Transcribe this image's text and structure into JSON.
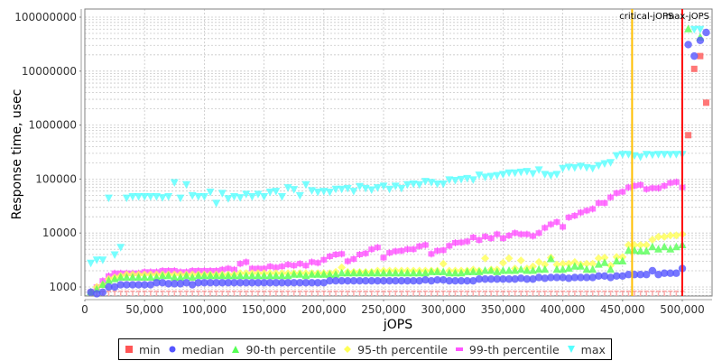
{
  "chart_data": {
    "type": "scatter",
    "title": "",
    "xlabel": "jOPS",
    "ylabel": "Response time, usec",
    "yscale": "log",
    "xlim": [
      0,
      525000
    ],
    "ylim": [
      700,
      130000000
    ],
    "x_ticks": [
      0,
      50000,
      100000,
      150000,
      200000,
      250000,
      300000,
      350000,
      400000,
      450000,
      500000
    ],
    "x_tick_labels": [
      "0",
      "50,000",
      "100,000",
      "150,000",
      "200,000",
      "250,000",
      "300,000",
      "350,000",
      "400,000",
      "450,000",
      "500,000"
    ],
    "y_ticks": [
      1000,
      10000,
      100000,
      1000000,
      10000000,
      100000000
    ],
    "y_tick_labels": [
      "1000",
      "10000",
      "100000",
      "1000000",
      "10000000",
      "100000000"
    ],
    "grid": true,
    "legend_position": "bottom",
    "annotations": [
      {
        "label": "critical-jOPS",
        "x": 458000,
        "color": "#ffc000"
      },
      {
        "label": "max-jOPS",
        "x": 500000,
        "color": "#ff0000"
      }
    ],
    "x": [
      5000,
      10000,
      15000,
      20000,
      25000,
      30000,
      35000,
      40000,
      45000,
      50000,
      55000,
      60000,
      65000,
      70000,
      75000,
      80000,
      85000,
      90000,
      95000,
      100000,
      105000,
      110000,
      115000,
      120000,
      125000,
      130000,
      135000,
      140000,
      145000,
      150000,
      155000,
      160000,
      165000,
      170000,
      175000,
      180000,
      185000,
      190000,
      195000,
      200000,
      205000,
      210000,
      215000,
      220000,
      225000,
      230000,
      235000,
      240000,
      245000,
      250000,
      255000,
      260000,
      265000,
      270000,
      275000,
      280000,
      285000,
      290000,
      295000,
      300000,
      305000,
      310000,
      315000,
      320000,
      325000,
      330000,
      335000,
      340000,
      345000,
      350000,
      355000,
      360000,
      365000,
      370000,
      375000,
      380000,
      385000,
      390000,
      395000,
      400000,
      405000,
      410000,
      415000,
      420000,
      425000,
      430000,
      435000,
      440000,
      445000,
      450000,
      455000,
      460000,
      465000,
      470000,
      475000,
      480000,
      485000,
      490000,
      495000,
      500000
    ],
    "series": [
      {
        "name": "min",
        "color": "#ff5555",
        "marker": "square",
        "values": [
          800,
          800,
          800,
          800,
          800,
          800,
          800,
          800,
          800,
          800,
          800,
          800,
          800,
          800,
          800,
          800,
          800,
          800,
          800,
          800,
          800,
          800,
          800,
          800,
          800,
          800,
          800,
          800,
          800,
          800,
          800,
          800,
          800,
          800,
          800,
          800,
          800,
          800,
          800,
          800,
          800,
          800,
          800,
          800,
          800,
          800,
          800,
          800,
          800,
          800,
          800,
          800,
          800,
          800,
          800,
          800,
          800,
          800,
          800,
          800,
          800,
          800,
          800,
          800,
          800,
          800,
          800,
          800,
          800,
          800,
          800,
          800,
          800,
          800,
          800,
          800,
          800,
          800,
          800,
          800,
          800,
          800,
          800,
          800,
          800,
          800,
          800,
          800,
          800,
          800,
          800,
          800,
          800,
          800,
          800,
          800,
          800,
          800,
          800,
          800
        ],
        "extra_points": [
          {
            "x": 505000,
            "y": 650000
          },
          {
            "x": 510000,
            "y": 11000000
          },
          {
            "x": 515000,
            "y": 19000000
          },
          {
            "x": 520000,
            "y": 2600000
          }
        ]
      },
      {
        "name": "median",
        "color": "#5555ff",
        "marker": "circle",
        "values": [
          800,
          750,
          800,
          1000,
          1000,
          1100,
          1100,
          1100,
          1100,
          1100,
          1100,
          1200,
          1200,
          1150,
          1150,
          1150,
          1200,
          1100,
          1200,
          1200,
          1200,
          1200,
          1200,
          1200,
          1200,
          1200,
          1200,
          1200,
          1200,
          1200,
          1200,
          1200,
          1200,
          1200,
          1200,
          1200,
          1200,
          1200,
          1200,
          1200,
          1300,
          1300,
          1300,
          1300,
          1300,
          1300,
          1300,
          1300,
          1300,
          1300,
          1300,
          1300,
          1300,
          1300,
          1300,
          1300,
          1350,
          1300,
          1350,
          1350,
          1300,
          1300,
          1300,
          1300,
          1300,
          1400,
          1400,
          1400,
          1400,
          1400,
          1400,
          1400,
          1450,
          1400,
          1400,
          1500,
          1450,
          1500,
          1500,
          1500,
          1450,
          1500,
          1500,
          1500,
          1500,
          1600,
          1600,
          1500,
          1600,
          1600,
          1700,
          1700,
          1700,
          1700,
          2000,
          1700,
          1800,
          1800,
          1800,
          2200
        ],
        "extra_points": [
          {
            "x": 505000,
            "y": 31000000
          },
          {
            "x": 510000,
            "y": 19000000
          },
          {
            "x": 515000,
            "y": 37000000
          },
          {
            "x": 520000,
            "y": 52000000
          }
        ]
      },
      {
        "name": "90-th percentile",
        "color": "#55ff55",
        "marker": "triangle-up",
        "values": [
          800,
          900,
          1100,
          1300,
          1400,
          1500,
          1500,
          1500,
          1500,
          1500,
          1500,
          1500,
          1600,
          1600,
          1500,
          1500,
          1600,
          1500,
          1600,
          1600,
          1600,
          1600,
          1600,
          1600,
          1600,
          1600,
          1600,
          1600,
          1600,
          1600,
          1600,
          1600,
          1600,
          1600,
          1700,
          1700,
          1600,
          1700,
          1700,
          1700,
          1700,
          1700,
          1800,
          1800,
          1800,
          1800,
          1800,
          1800,
          1800,
          1800,
          1800,
          1800,
          1800,
          1800,
          1800,
          1800,
          1800,
          1900,
          1900,
          1900,
          1800,
          1800,
          1800,
          1900,
          1900,
          1900,
          2000,
          2000,
          1900,
          2000,
          2000,
          2000,
          2100,
          2000,
          2000,
          2100,
          2100,
          3300,
          2100,
          2100,
          2200,
          2400,
          2400,
          2100,
          2100,
          2600,
          2800,
          2100,
          3000,
          3000,
          4700,
          4700,
          4600,
          4600,
          5500,
          5000,
          5500,
          5000,
          5500,
          6000
        ],
        "extra_points": [
          {
            "x": 505000,
            "y": 60000000
          },
          {
            "x": 515000,
            "y": 42000000
          }
        ]
      },
      {
        "name": "95-th percentile",
        "color": "#ffff55",
        "marker": "diamond",
        "values": [
          800,
          1000,
          1100,
          1400,
          1500,
          1600,
          1700,
          1700,
          1700,
          1700,
          1700,
          1700,
          1700,
          1700,
          1700,
          1700,
          1700,
          1700,
          1700,
          1700,
          1700,
          1700,
          1700,
          1700,
          1700,
          1800,
          1800,
          1800,
          1800,
          1800,
          1800,
          1800,
          1800,
          1800,
          1800,
          1800,
          1800,
          1800,
          1800,
          1800,
          1800,
          1900,
          2300,
          1900,
          1900,
          1900,
          1900,
          1900,
          2000,
          2000,
          2000,
          2000,
          2000,
          2000,
          2000,
          2000,
          2000,
          2000,
          2000,
          2700,
          2000,
          2000,
          2000,
          2000,
          2100,
          2000,
          3400,
          2100,
          2100,
          2800,
          3400,
          2200,
          3100,
          2200,
          2400,
          2900,
          2600,
          3500,
          2600,
          2700,
          2700,
          2900,
          2600,
          2700,
          2700,
          3400,
          3500,
          2500,
          3600,
          3600,
          6000,
          6000,
          6000,
          6000,
          7500,
          8500,
          8500,
          9000,
          9000,
          9500
        ],
        "extra_points": []
      },
      {
        "name": "99-th percentile",
        "color": "#ff55ff",
        "marker": "square-plus",
        "values": [
          800,
          1000,
          1300,
          1600,
          1800,
          1800,
          1800,
          1800,
          1800,
          1900,
          1900,
          1900,
          2000,
          2000,
          2000,
          1900,
          1900,
          2000,
          2000,
          2000,
          2000,
          2000,
          2100,
          2200,
          2100,
          2700,
          2900,
          2200,
          2200,
          2200,
          2400,
          2300,
          2400,
          2600,
          2500,
          2700,
          2500,
          2900,
          2800,
          3200,
          3700,
          4000,
          4100,
          3000,
          3300,
          4000,
          4200,
          5000,
          5400,
          3500,
          4300,
          4600,
          4700,
          5000,
          5000,
          5700,
          6000,
          4100,
          4700,
          4800,
          5800,
          6600,
          6700,
          7000,
          8300,
          7400,
          8600,
          8000,
          9500,
          8000,
          9000,
          10000,
          9500,
          9500,
          8800,
          10000,
          12500,
          14500,
          16000,
          13000,
          19500,
          21000,
          24000,
          26000,
          28000,
          36000,
          36000,
          46000,
          55000,
          58000,
          70000,
          75000,
          78000,
          65000,
          68000,
          68000,
          75000,
          85000,
          88000,
          70000
        ],
        "extra_points": []
      },
      {
        "name": "max",
        "color": "#55ffff",
        "marker": "triangle-down",
        "values": [
          2800,
          3200,
          3200,
          45000,
          4000,
          5500,
          45000,
          48000,
          48000,
          48000,
          48000,
          48000,
          46000,
          48000,
          87000,
          45000,
          80000,
          50000,
          48000,
          48000,
          58000,
          36000,
          55000,
          44000,
          48000,
          46000,
          53000,
          48000,
          53000,
          48000,
          58000,
          60000,
          48000,
          70000,
          65000,
          50000,
          80000,
          62000,
          58000,
          60000,
          58000,
          66000,
          66000,
          68000,
          60000,
          74000,
          68000,
          64000,
          70000,
          75000,
          66000,
          75000,
          68000,
          80000,
          82000,
          80000,
          92000,
          88000,
          82000,
          82000,
          98000,
          96000,
          100000,
          104000,
          98000,
          120000,
          110000,
          114000,
          118000,
          124000,
          132000,
          132000,
          136000,
          140000,
          128000,
          150000,
          124000,
          118000,
          124000,
          160000,
          168000,
          164000,
          175000,
          165000,
          160000,
          180000,
          195000,
          205000,
          275000,
          290000,
          290000,
          275000,
          260000,
          290000,
          285000,
          290000,
          290000,
          288000,
          290000,
          290000
        ],
        "extra_points": [
          {
            "x": 510000,
            "y": 60000000
          },
          {
            "x": 515000,
            "y": 60000000
          }
        ]
      }
    ]
  },
  "legend": {
    "items": [
      {
        "label": "min",
        "color": "#ff5555",
        "shape": "square"
      },
      {
        "label": "median",
        "color": "#5555ff",
        "shape": "circle"
      },
      {
        "label": "90-th percentile",
        "color": "#55ff55",
        "shape": "triangle-up"
      },
      {
        "label": "95-th percentile",
        "color": "#ffff55",
        "shape": "diamond"
      },
      {
        "label": "99-th percentile",
        "color": "#ff55ff",
        "shape": "square"
      },
      {
        "label": "max",
        "color": "#55ffff",
        "shape": "triangle-down"
      }
    ]
  }
}
